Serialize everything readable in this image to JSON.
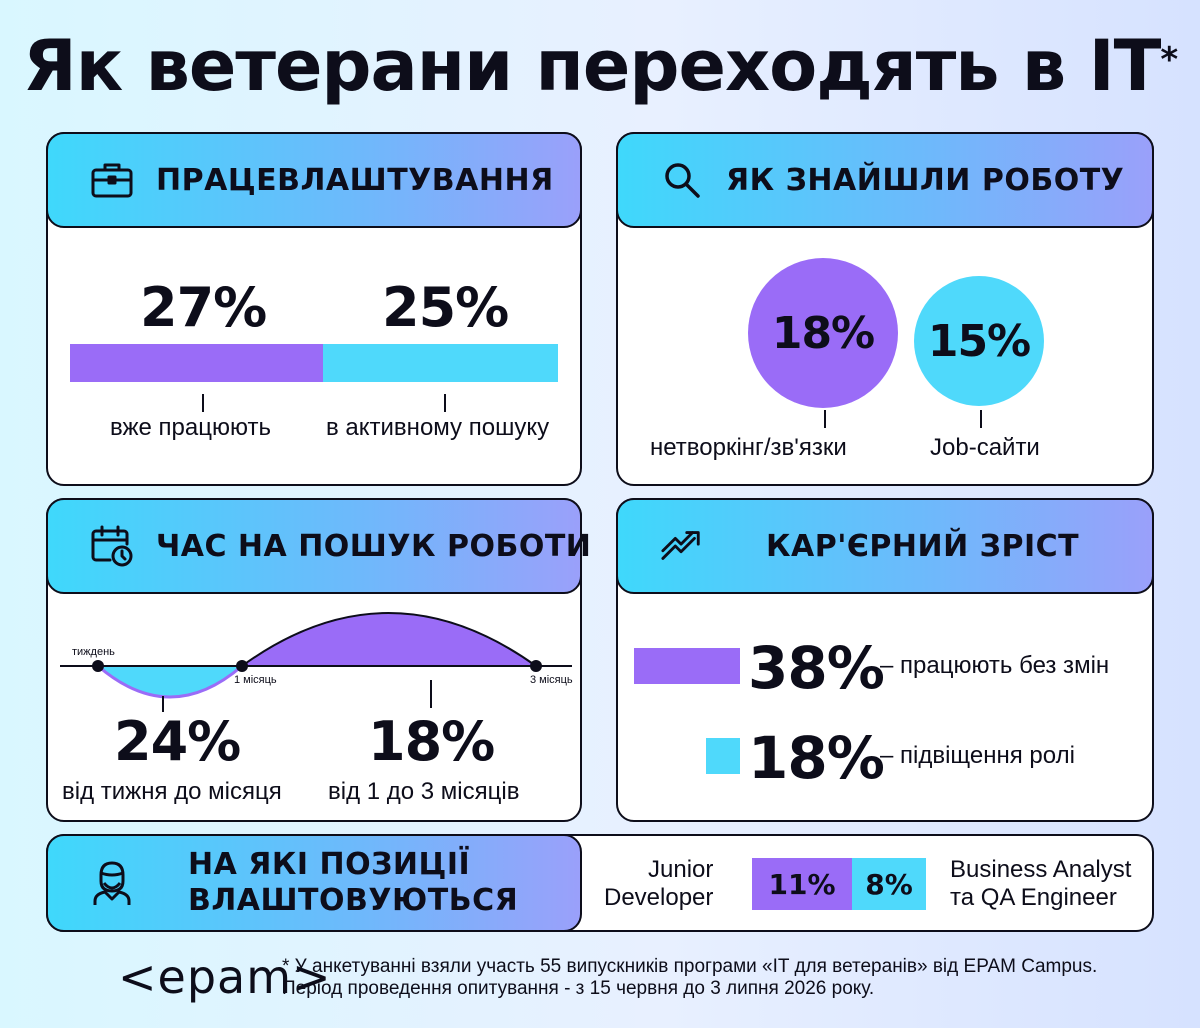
{
  "title": "Як ветерани переходять в IT",
  "title_mark": "*",
  "colors": {
    "purple": "#9a6cf7",
    "cyan": "#4fd9fb",
    "dark": "#0d0d1a"
  },
  "employment": {
    "heading": "ПРАЦЕВЛАШТУВАННЯ",
    "icon": "briefcase-icon",
    "working_value": "27%",
    "working_label": "вже працюють",
    "working_fraction": 0.27,
    "searching_value": "25%",
    "searching_label": "в активному пошуку",
    "searching_fraction": 0.25
  },
  "found_job": {
    "heading": "ЯК ЗНАЙШЛИ РОБОТУ",
    "icon": "search-icon",
    "networking_value": "18%",
    "networking_label": "нетворкінг/зв'язки",
    "jobsites_value": "15%",
    "jobsites_label": "Job-сайти"
  },
  "search_time": {
    "heading": "ЧАС НА ПОШУК РОБОТИ",
    "icon": "calendar-clock-icon",
    "axis_week": "тиждень",
    "axis_month1": "1 місяць",
    "axis_month3": "3 місяць",
    "first_value": "24%",
    "first_label": "від тижня до місяця",
    "second_value": "18%",
    "second_label": "від 1 до 3 місяців"
  },
  "career": {
    "heading": "КАР'ЄРНИЙ ЗРІСТ",
    "icon": "trend-up-icon",
    "unchanged_value": "38%",
    "unchanged_label": "– працюють без змін",
    "promoted_value": "18%",
    "promoted_label": "– підвіщення ролі"
  },
  "positions": {
    "heading_line1": "НА ЯКІ ПОЗИЦІЇ",
    "heading_line2": "ВЛАШТОВУЮТЬСЯ",
    "icon": "person-icon",
    "left_label_line1": "Junior",
    "left_label_line2": "Developer",
    "left_value": "11%",
    "right_value": "8%",
    "right_label_line1": "Business Analyst",
    "right_label_line2": "та QA Engineer"
  },
  "footer": {
    "logo": "<epam>",
    "note_line1": "* У анкетуванні взяли участь 55 випускників програми «IT для ветеранів» від EPAM Campus.",
    "note_line2": "Період проведення опитування - з 15 червня до 3 липня 2026 року."
  }
}
